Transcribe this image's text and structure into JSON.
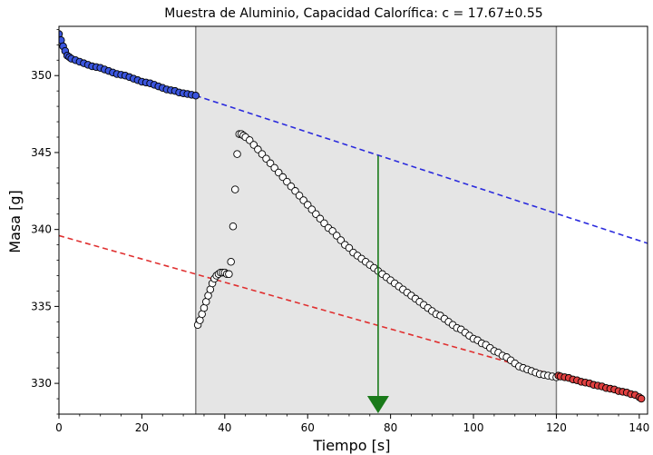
{
  "chart_data": {
    "type": "scatter",
    "title": "Muestra de Aluminio, Capacidad Calorífica: c = 17.67±0.55",
    "xlabel": "Tiempo [s]",
    "ylabel": "Masa [g]",
    "xlim": [
      0,
      142
    ],
    "ylim": [
      328,
      353.2
    ],
    "xticks": [
      "0",
      "20",
      "40",
      "60",
      "80",
      "100",
      "120",
      "140"
    ],
    "yticks": [
      "330",
      "335",
      "340",
      "345",
      "350"
    ],
    "shaded_region": {
      "x_start": 33,
      "x_end": 120,
      "color": "#e5e5e5"
    },
    "vertical_lines": [
      33,
      120
    ],
    "fit_lines": [
      {
        "color": "#2b2bdd",
        "style": "dashed",
        "from": [
          33,
          348.7
        ],
        "to": [
          142,
          339.1
        ]
      },
      {
        "color": "#e03030",
        "style": "dashed",
        "from": [
          0,
          339.6
        ],
        "to": [
          120,
          330.5
        ]
      }
    ],
    "arrow": {
      "x": 77,
      "y_start": 344.8,
      "y_end": 328,
      "color": "#1a7a1a"
    },
    "colors": {
      "pre": "#3a55dd",
      "mid": "#ffffff",
      "post": "#e04040"
    },
    "series": [
      {
        "group": "pre",
        "x": [
          0,
          0.5,
          1,
          1.5,
          2,
          2.5,
          3,
          4,
          5,
          6,
          7,
          8,
          9,
          10,
          11,
          12,
          13,
          14,
          15,
          16,
          17,
          18,
          19,
          20,
          21,
          22,
          23,
          24,
          25,
          26,
          27,
          28,
          29,
          30,
          31,
          32,
          33
        ],
        "y": [
          352.7,
          352.3,
          351.9,
          351.6,
          351.3,
          351.2,
          351.1,
          351.0,
          350.9,
          350.8,
          350.7,
          350.6,
          350.55,
          350.5,
          350.4,
          350.3,
          350.2,
          350.1,
          350.05,
          350.0,
          349.9,
          349.8,
          349.7,
          349.6,
          349.55,
          349.5,
          349.4,
          349.3,
          349.2,
          349.1,
          349.05,
          349.0,
          348.9,
          348.85,
          348.8,
          348.75,
          348.7
        ]
      },
      {
        "group": "mid",
        "x": [
          33.5,
          34,
          34.5,
          35,
          35.5,
          36,
          36.5,
          37,
          37.5,
          38,
          38.5,
          39,
          39.5,
          40,
          40.5,
          41,
          41.5,
          42,
          42.5,
          43,
          43.5,
          44,
          44.5,
          45,
          46,
          47,
          48,
          49,
          50,
          51,
          52,
          53,
          54,
          55,
          56,
          57,
          58,
          59,
          60,
          61,
          62,
          63,
          64,
          65,
          66,
          67,
          68,
          69,
          70,
          71,
          72,
          73,
          74,
          75,
          76,
          77,
          78,
          79,
          80,
          81,
          82,
          83,
          84,
          85,
          86,
          87,
          88,
          89,
          90,
          91,
          92,
          93,
          94,
          95,
          96,
          97,
          98,
          99,
          100,
          101,
          102,
          103,
          104,
          105,
          106,
          107,
          108,
          109,
          110,
          111,
          112,
          113,
          114,
          115,
          116,
          117,
          118,
          119,
          120
        ],
        "y": [
          333.8,
          334.1,
          334.5,
          334.9,
          335.3,
          335.7,
          336.1,
          336.5,
          336.8,
          337.0,
          337.1,
          337.2,
          337.2,
          337.2,
          337.1,
          337.1,
          337.9,
          340.2,
          342.6,
          344.9,
          346.2,
          346.2,
          346.1,
          346.0,
          345.8,
          345.5,
          345.2,
          344.9,
          344.6,
          344.3,
          344.0,
          343.7,
          343.4,
          343.1,
          342.8,
          342.5,
          342.2,
          341.9,
          341.6,
          341.3,
          341.0,
          340.7,
          340.4,
          340.1,
          339.9,
          339.6,
          339.3,
          339.0,
          338.8,
          338.5,
          338.3,
          338.1,
          337.9,
          337.7,
          337.5,
          337.3,
          337.1,
          336.9,
          336.7,
          336.5,
          336.3,
          336.1,
          335.9,
          335.7,
          335.5,
          335.3,
          335.1,
          334.9,
          334.7,
          334.5,
          334.4,
          334.2,
          334.0,
          333.8,
          333.6,
          333.5,
          333.3,
          333.1,
          332.9,
          332.8,
          332.6,
          332.5,
          332.3,
          332.1,
          332.0,
          331.8,
          331.7,
          331.5,
          331.3,
          331.1,
          331.0,
          330.9,
          330.8,
          330.7,
          330.6,
          330.55,
          330.5,
          330.45,
          330.4
        ]
      },
      {
        "group": "post",
        "x": [
          120.5,
          121,
          122,
          123,
          124,
          125,
          126,
          127,
          128,
          129,
          130,
          131,
          132,
          133,
          134,
          135,
          136,
          137,
          138,
          139,
          140,
          140.5
        ],
        "y": [
          330.5,
          330.45,
          330.4,
          330.35,
          330.25,
          330.2,
          330.1,
          330.05,
          330.0,
          329.9,
          329.85,
          329.8,
          329.7,
          329.65,
          329.6,
          329.5,
          329.45,
          329.4,
          329.3,
          329.25,
          329.1,
          329.0
        ]
      }
    ]
  }
}
